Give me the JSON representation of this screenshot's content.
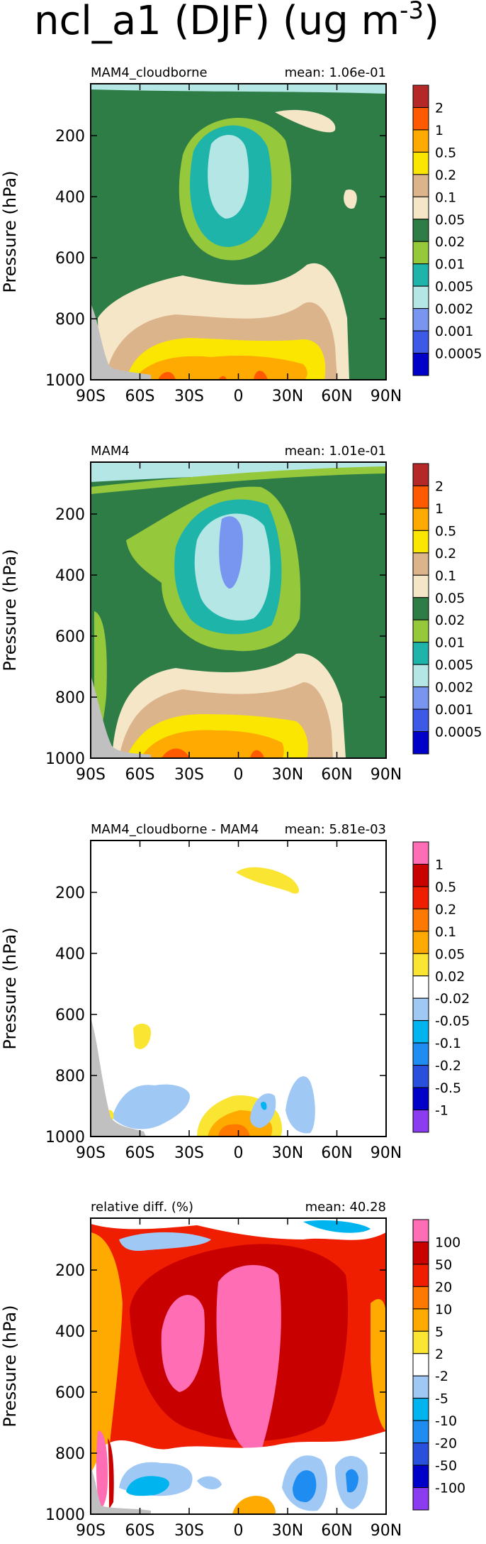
{
  "figure_title": "ncl_a1 (DJF) (ug m",
  "figure_title_sup": "-3",
  "figure_title_end": ")",
  "colors": {
    "abs": [
      "#0000c8",
      "#3c5ae6",
      "#7896f0",
      "#b4e6e6",
      "#1eb4aa",
      "#96c83c",
      "#2e7d46",
      "#f5e6c8",
      "#dcb48c",
      "#fae600",
      "#ffaa00",
      "#ff5a00",
      "#b42828"
    ],
    "diff": [
      "#8c3cf0",
      "#0000c8",
      "#2850dc",
      "#1e8cf0",
      "#00b4f0",
      "#a0c8f5",
      "#ffffff",
      "#fae632",
      "#ffaa00",
      "#ff7800",
      "#f01e00",
      "#c80000",
      "#ff6eb4"
    ],
    "missing": "#c0c0c0"
  },
  "chart_data": [
    {
      "type": "heatmap",
      "panel_title": "MAM4_cloudborne",
      "mean_label": "mean: 1.06e-01",
      "xlabel": "",
      "ylabel": "Pressure (hPa)",
      "x_ticks": [
        "90S",
        "60S",
        "30S",
        "0",
        "30N",
        "60N",
        "90N"
      ],
      "x_tick_values": [
        -90,
        -60,
        -30,
        0,
        30,
        60,
        90
      ],
      "y_ticks": [
        "200",
        "400",
        "600",
        "800",
        "1000"
      ],
      "y_tick_values": [
        200,
        400,
        600,
        800,
        1000
      ],
      "xlim": [
        -90,
        90
      ],
      "ylim": [
        1000,
        30
      ],
      "colorbar_labels": [
        "2",
        "1",
        "0.5",
        "0.2",
        "0.1",
        "0.05",
        "0.02",
        "0.01",
        "0.005",
        "0.002",
        "0.001",
        "0.0005"
      ]
    },
    {
      "type": "heatmap",
      "panel_title": "MAM4",
      "mean_label": "mean: 1.01e-01",
      "xlabel": "",
      "ylabel": "Pressure (hPa)",
      "x_ticks": [
        "90S",
        "60S",
        "30S",
        "0",
        "30N",
        "60N",
        "90N"
      ],
      "x_tick_values": [
        -90,
        -60,
        -30,
        0,
        30,
        60,
        90
      ],
      "y_ticks": [
        "200",
        "400",
        "600",
        "800",
        "1000"
      ],
      "y_tick_values": [
        200,
        400,
        600,
        800,
        1000
      ],
      "xlim": [
        -90,
        90
      ],
      "ylim": [
        1000,
        30
      ],
      "colorbar_labels": [
        "2",
        "1",
        "0.5",
        "0.2",
        "0.1",
        "0.05",
        "0.02",
        "0.01",
        "0.005",
        "0.002",
        "0.001",
        "0.0005"
      ]
    },
    {
      "type": "heatmap",
      "panel_title": "MAM4_cloudborne - MAM4",
      "mean_label": "mean: 5.81e-03",
      "xlabel": "",
      "ylabel": "Pressure (hPa)",
      "x_ticks": [
        "90S",
        "60S",
        "30S",
        "0",
        "30N",
        "60N",
        "90N"
      ],
      "x_tick_values": [
        -90,
        -60,
        -30,
        0,
        30,
        60,
        90
      ],
      "y_ticks": [
        "200",
        "400",
        "600",
        "800",
        "1000"
      ],
      "y_tick_values": [
        200,
        400,
        600,
        800,
        1000
      ],
      "xlim": [
        -90,
        90
      ],
      "ylim": [
        1000,
        30
      ],
      "colorbar_labels": [
        "1",
        "0.5",
        "0.2",
        "0.1",
        "0.05",
        "0.02",
        "-0.02",
        "-0.05",
        "-0.1",
        "-0.2",
        "-0.5",
        "-1"
      ]
    },
    {
      "type": "heatmap",
      "panel_title": "relative diff. (%)",
      "mean_label": "mean: 40.28",
      "xlabel": "",
      "ylabel": "Pressure (hPa)",
      "x_ticks": [
        "90S",
        "60S",
        "30S",
        "0",
        "30N",
        "60N",
        "90N"
      ],
      "x_tick_values": [
        -90,
        -60,
        -30,
        0,
        30,
        60,
        90
      ],
      "y_ticks": [
        "200",
        "400",
        "600",
        "800",
        "1000"
      ],
      "y_tick_values": [
        200,
        400,
        600,
        800,
        1000
      ],
      "xlim": [
        -90,
        90
      ],
      "ylim": [
        1000,
        30
      ],
      "colorbar_labels": [
        "100",
        "50",
        "20",
        "10",
        "5",
        "2",
        "-2",
        "-5",
        "-10",
        "-20",
        "-50",
        "-100"
      ]
    }
  ]
}
